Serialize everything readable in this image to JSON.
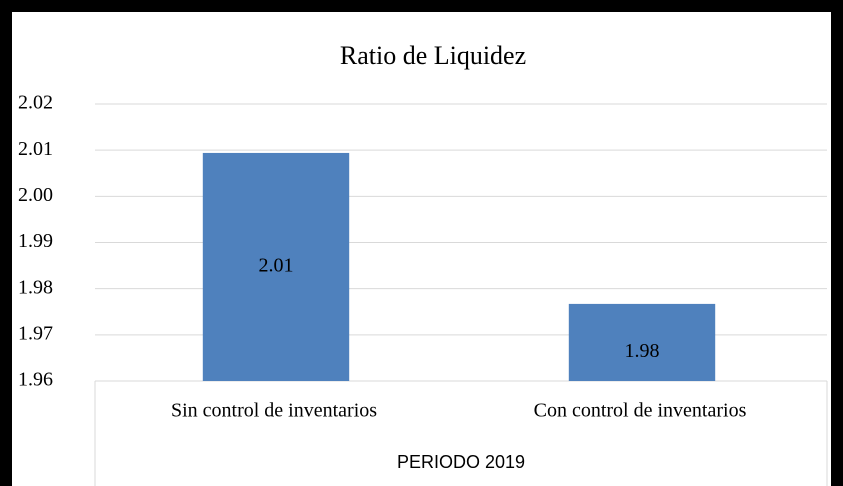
{
  "chart_data": {
    "type": "bar",
    "title": "Ratio de Liquidez",
    "x_label": "PERIODO 2019",
    "categories": [
      "Sin control de inventarios",
      "Con control de inventarios"
    ],
    "values": [
      2.0094,
      1.9767
    ],
    "value_labels": [
      "2.01",
      "1.98"
    ],
    "color": "#4f81bd",
    "ylim": [
      1.96,
      2.02
    ],
    "yticks": [
      1.96,
      1.97,
      1.98,
      1.99,
      {
        "value": 2,
        "label": "2.00"
      },
      2.01,
      2.02
    ],
    "grid": true
  }
}
